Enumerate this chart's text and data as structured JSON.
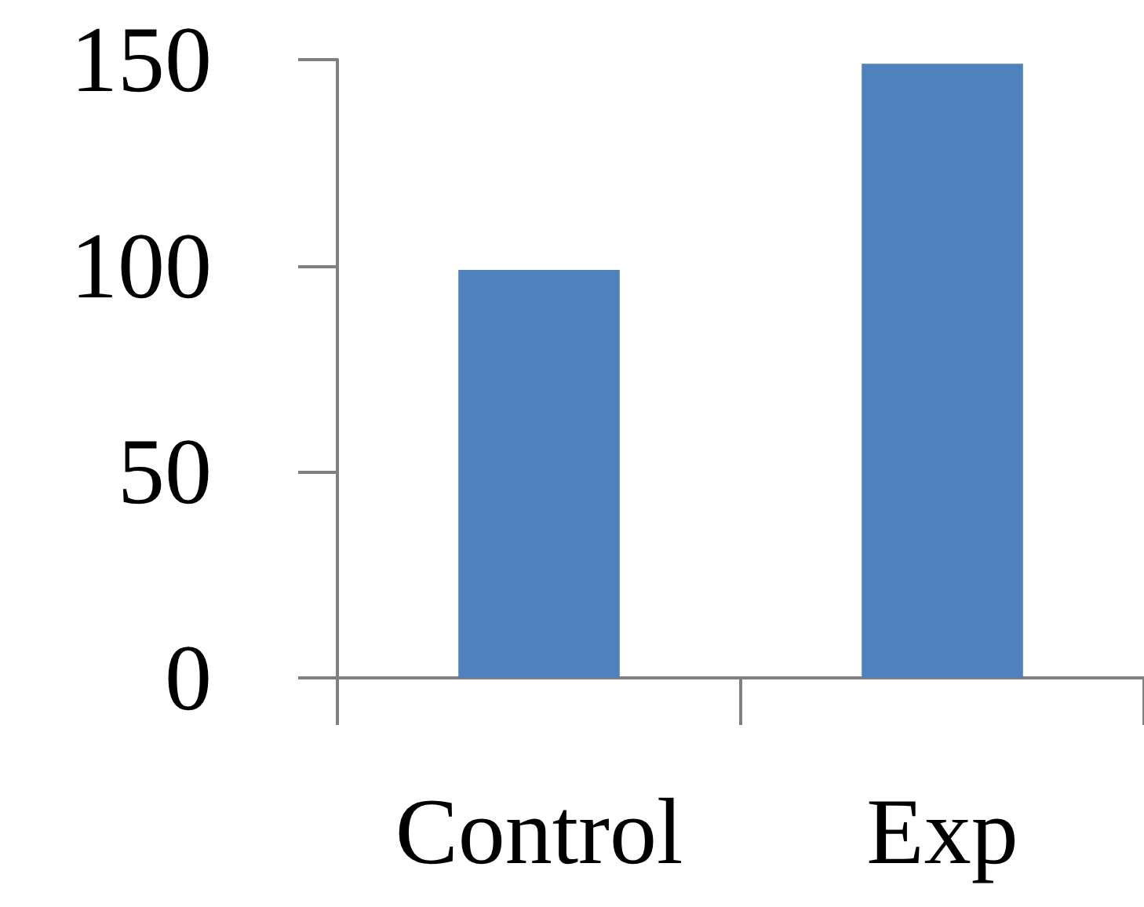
{
  "chart_data": {
    "type": "bar",
    "categories": [
      "Control",
      "Exp"
    ],
    "values": [
      99,
      149
    ],
    "color": "#4f81bd",
    "ylim": [
      0,
      150
    ],
    "yticks": [
      0,
      50,
      100,
      150
    ],
    "grid": false
  }
}
